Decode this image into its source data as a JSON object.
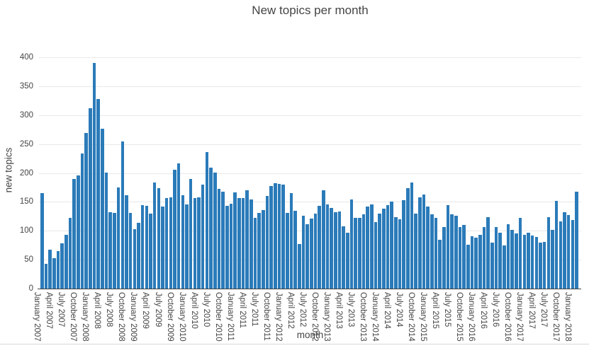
{
  "title": "New topics per month",
  "y_axis": {
    "label": "new topics",
    "ticks": [
      0,
      50,
      100,
      150,
      200,
      250,
      300,
      350,
      400
    ]
  },
  "x_axis": {
    "label": "month",
    "tick_labels": [
      "January 2007",
      "April 2007",
      "July 2007",
      "October 2007",
      "January 2008",
      "April 2008",
      "July 2008",
      "October 2008",
      "January 2009",
      "April 2009",
      "July 2009",
      "October 2009",
      "January 2010",
      "April 2010",
      "July 2010",
      "October 2010",
      "January 2011",
      "April 2011",
      "July 2011",
      "October 2011",
      "January 2012",
      "April 2012",
      "July 2012",
      "October 2012",
      "January 2013",
      "April 2013",
      "July 2013",
      "October 2013",
      "January 2014",
      "April 2014",
      "July 2014",
      "October 2014",
      "January 2015",
      "April 2015",
      "July 2015",
      "October 2015",
      "January 2016",
      "April 2016",
      "July 2016",
      "October 2016",
      "January 2017",
      "April 2017",
      "July 2017",
      "October 2017",
      "January 2018"
    ]
  },
  "colors": {
    "bar": "#2b7bb9",
    "grid": "#e8e8e8",
    "axis": "#444444",
    "text": "#444444"
  },
  "chart_data": {
    "type": "bar",
    "title": "New topics per month",
    "xlabel": "month",
    "ylabel": "new topics",
    "ylim": [
      0,
      400
    ],
    "grid": true,
    "legend_position": "none",
    "x": [
      "January 2007",
      "February 2007",
      "March 2007",
      "April 2007",
      "May 2007",
      "June 2007",
      "July 2007",
      "August 2007",
      "September 2007",
      "October 2007",
      "November 2007",
      "December 2007",
      "January 2008",
      "February 2008",
      "March 2008",
      "April 2008",
      "May 2008",
      "June 2008",
      "July 2008",
      "August 2008",
      "September 2008",
      "October 2008",
      "November 2008",
      "December 2008",
      "January 2009",
      "February 2009",
      "March 2009",
      "April 2009",
      "May 2009",
      "June 2009",
      "July 2009",
      "August 2009",
      "September 2009",
      "October 2009",
      "November 2009",
      "December 2009",
      "January 2010",
      "February 2010",
      "March 2010",
      "April 2010",
      "May 2010",
      "June 2010",
      "July 2010",
      "August 2010",
      "September 2010",
      "October 2010",
      "November 2010",
      "December 2010",
      "January 2011",
      "February 2011",
      "March 2011",
      "April 2011",
      "May 2011",
      "June 2011",
      "July 2011",
      "August 2011",
      "September 2011",
      "October 2011",
      "November 2011",
      "December 2011",
      "January 2012",
      "February 2012",
      "March 2012",
      "April 2012",
      "May 2012",
      "June 2012",
      "July 2012",
      "August 2012",
      "September 2012",
      "October 2012",
      "November 2012",
      "December 2012",
      "January 2013",
      "February 2013",
      "March 2013",
      "April 2013",
      "May 2013",
      "June 2013",
      "July 2013",
      "August 2013",
      "September 2013",
      "October 2013",
      "November 2013",
      "December 2013",
      "January 2014",
      "February 2014",
      "March 2014",
      "April 2014",
      "May 2014",
      "June 2014",
      "July 2014",
      "August 2014",
      "September 2014",
      "October 2014",
      "November 2014",
      "December 2014",
      "January 2015",
      "February 2015",
      "March 2015",
      "April 2015",
      "May 2015",
      "June 2015",
      "July 2015",
      "August 2015",
      "September 2015",
      "October 2015",
      "November 2015",
      "December 2015",
      "January 2016",
      "February 2016",
      "March 2016",
      "April 2016",
      "May 2016",
      "June 2016",
      "July 2016",
      "August 2016",
      "September 2016",
      "October 2016",
      "November 2016",
      "December 2016",
      "January 2017",
      "February 2017",
      "March 2017",
      "April 2017",
      "May 2017",
      "June 2017",
      "July 2017",
      "August 2017",
      "September 2017",
      "October 2017",
      "November 2017",
      "December 2017",
      "January 2018",
      "February 2018"
    ],
    "values": [
      165,
      43,
      67,
      52,
      65,
      78,
      93,
      122,
      189,
      196,
      234,
      269,
      312,
      390,
      328,
      277,
      201,
      132,
      131,
      175,
      255,
      162,
      131,
      103,
      114,
      144,
      143,
      130,
      183,
      174,
      142,
      156,
      158,
      205,
      217,
      162,
      146,
      190,
      156,
      158,
      180,
      236,
      209,
      201,
      173,
      167,
      143,
      147,
      166,
      156,
      156,
      170,
      154,
      122,
      131,
      136,
      160,
      177,
      182,
      181,
      180,
      131,
      165,
      134,
      77,
      126,
      111,
      121,
      130,
      143,
      170,
      145,
      140,
      132,
      133,
      108,
      97,
      154,
      122,
      122,
      128,
      142,
      145,
      115,
      130,
      138,
      144,
      150,
      124,
      120,
      153,
      174,
      183,
      130,
      158,
      163,
      142,
      128,
      122,
      85,
      107,
      144,
      128,
      126,
      106,
      110,
      76,
      91,
      88,
      93,
      106,
      124,
      80,
      107,
      97,
      75,
      111,
      101,
      95,
      122,
      93,
      97,
      92,
      89,
      79,
      81,
      124,
      101,
      152,
      116,
      132,
      127,
      119,
      168
    ]
  }
}
